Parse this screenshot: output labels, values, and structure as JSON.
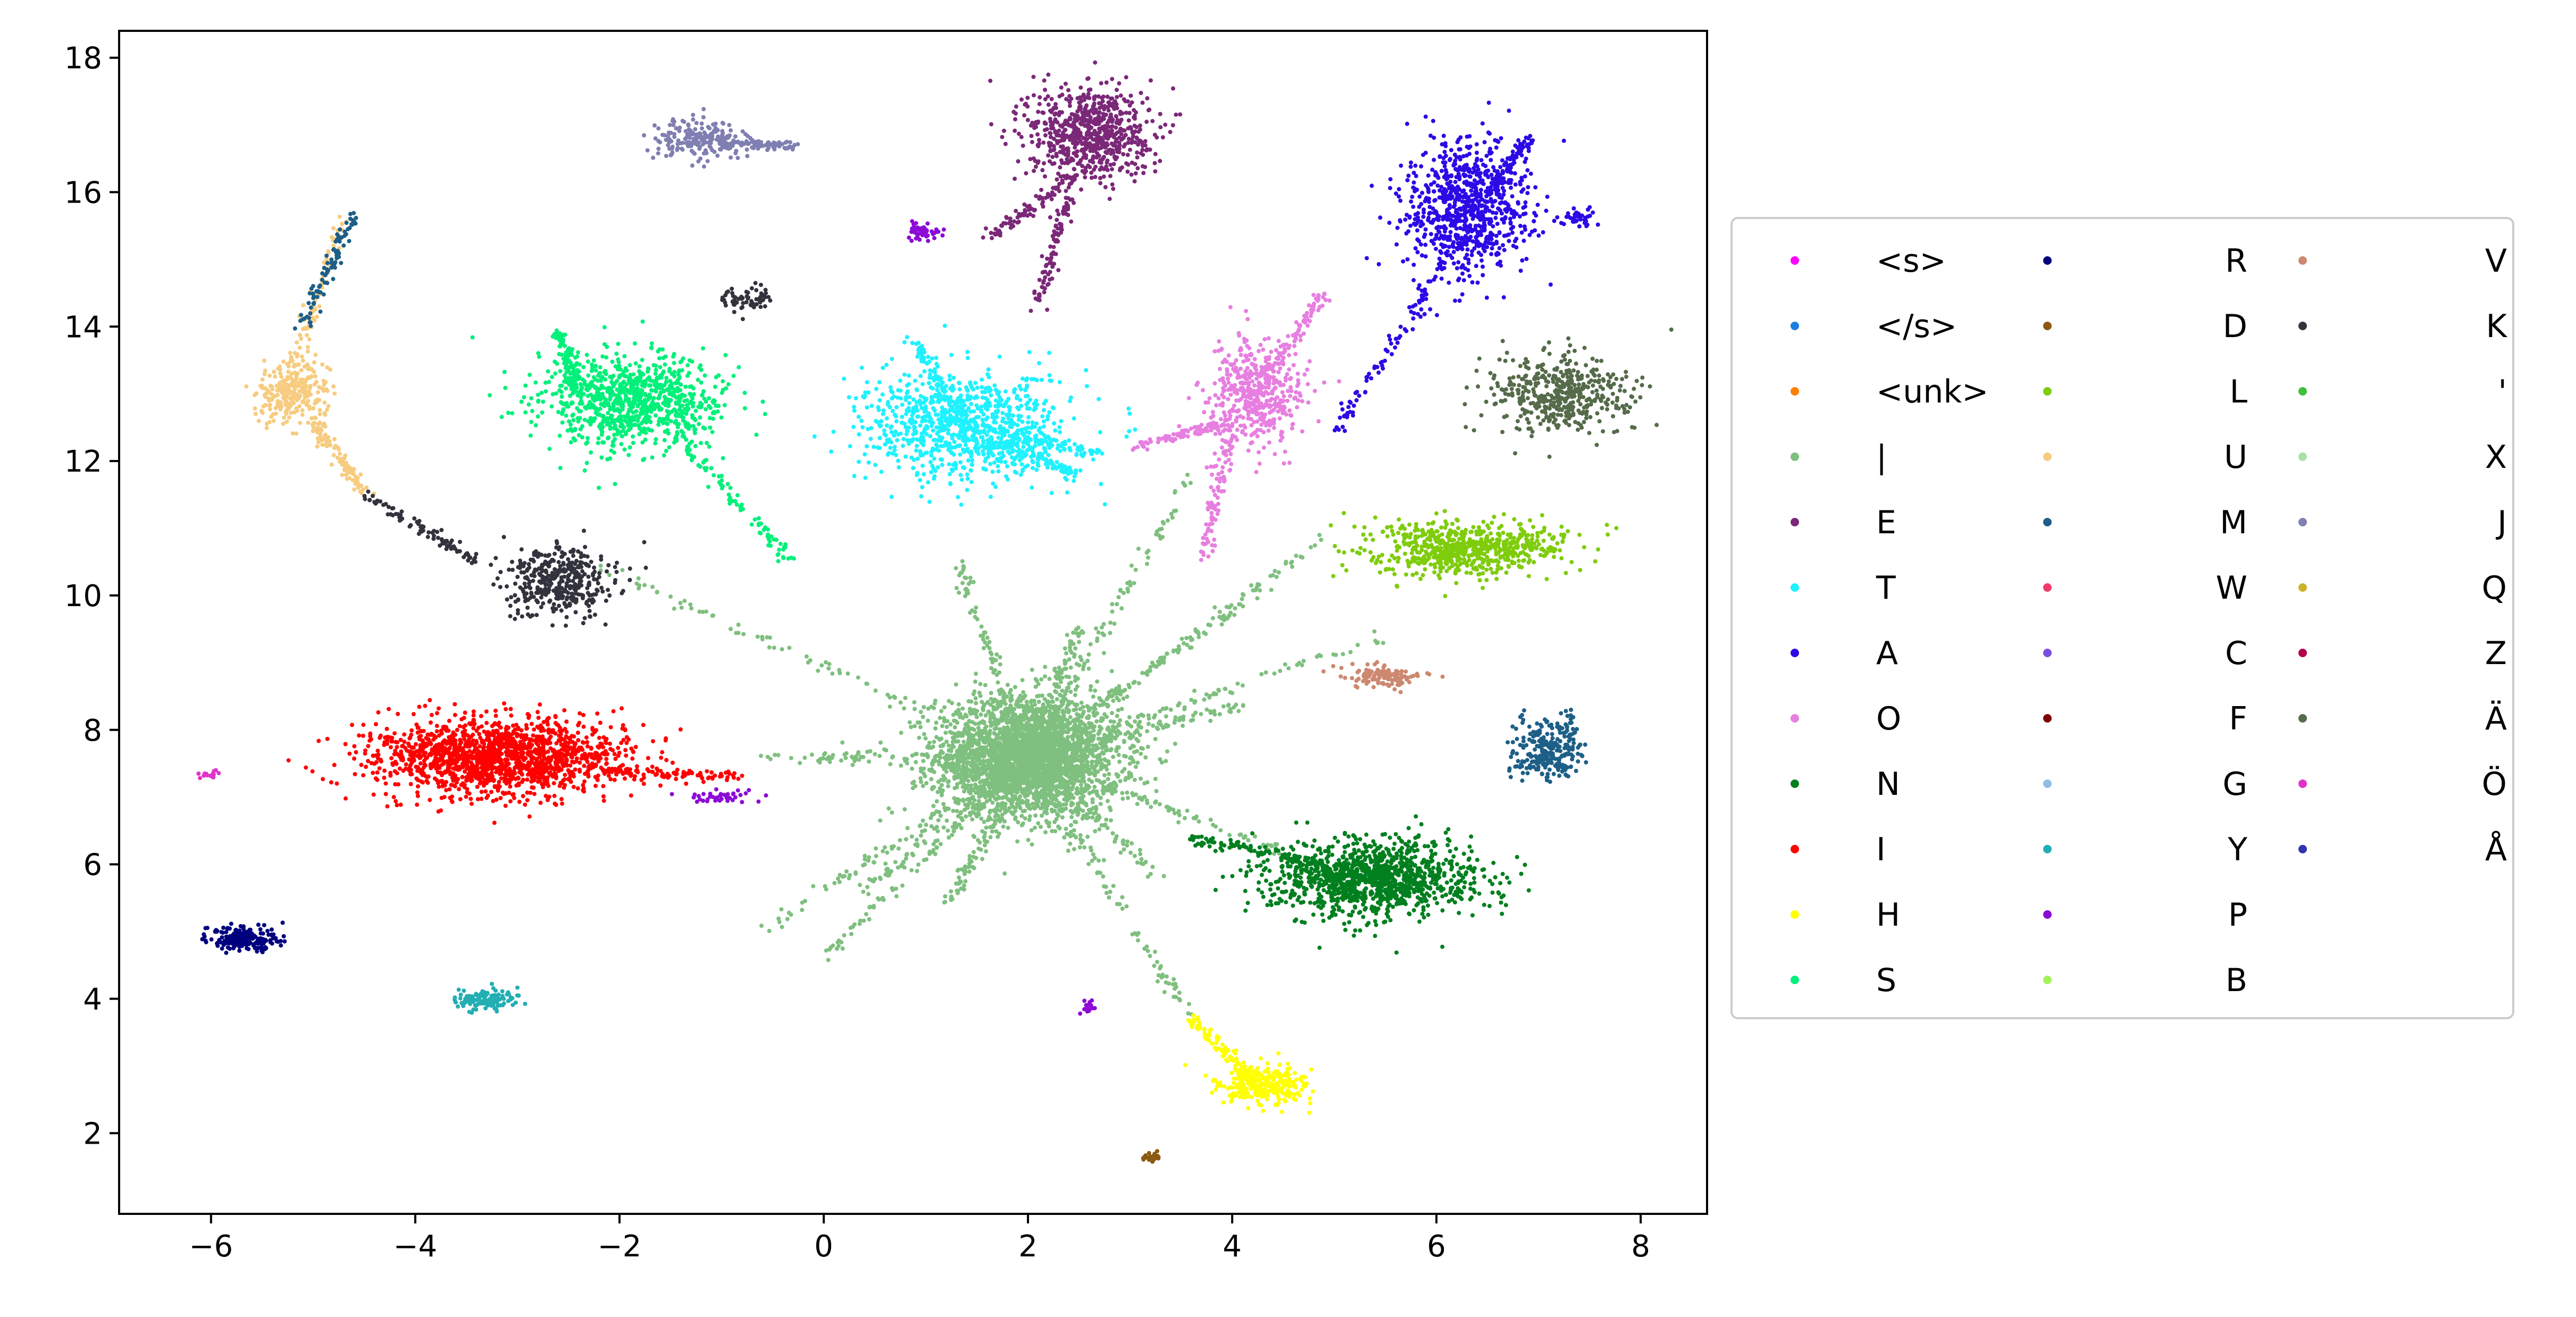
{
  "chart_data": {
    "type": "scatter",
    "title": "",
    "xlabel": "",
    "ylabel": "",
    "xlim": [
      -6.9,
      8.65
    ],
    "ylim": [
      0.8,
      18.4
    ],
    "x_ticks": [
      -6,
      -4,
      -2,
      0,
      2,
      4,
      6,
      8
    ],
    "y_ticks": [
      2,
      4,
      6,
      8,
      10,
      12,
      14,
      16,
      18
    ],
    "x_tick_labels": [
      "−6",
      "−4",
      "−2",
      "0",
      "2",
      "4",
      "6",
      "8"
    ],
    "y_tick_labels": [
      "2",
      "4",
      "6",
      "8",
      "10",
      "12",
      "14",
      "16",
      "18"
    ],
    "grid": false,
    "legend_placement": "right-outside",
    "legend_columns": 3,
    "series": [
      {
        "name": "<s>",
        "color": "#ff00ff",
        "clusters": []
      },
      {
        "name": "</s>",
        "color": "#1a7fe0",
        "clusters": []
      },
      {
        "name": "<unk>",
        "color": "#ff8000",
        "clusters": []
      },
      {
        "name": "|",
        "color": "#7fbf7f",
        "clusters": [
          {
            "cx": 2.0,
            "cy": 7.6,
            "sx": 0.45,
            "sy": 0.45,
            "n": 3000
          }
        ],
        "rays": [
          {
            "from": [
              2.0,
              7.6
            ],
            "to": [
              -2.3,
              10.5
            ]
          },
          {
            "from": [
              2.0,
              7.6
            ],
            "to": [
              -0.6,
              7.6
            ]
          },
          {
            "from": [
              2.0,
              7.6
            ],
            "to": [
              -0.6,
              5.0
            ]
          },
          {
            "from": [
              2.0,
              7.6
            ],
            "to": [
              1.3,
              10.5
            ]
          },
          {
            "from": [
              2.0,
              7.6
            ],
            "to": [
              0.0,
              4.6
            ]
          },
          {
            "from": [
              2.0,
              7.6
            ],
            "to": [
              3.6,
              11.8
            ]
          },
          {
            "from": [
              2.0,
              7.6
            ],
            "to": [
              4.4,
              10.2
            ]
          },
          {
            "from": [
              2.0,
              7.6
            ],
            "to": [
              5.0,
              11.0
            ]
          },
          {
            "from": [
              2.0,
              7.6
            ],
            "to": [
              5.5,
              9.4
            ]
          },
          {
            "from": [
              2.0,
              7.6
            ],
            "to": [
              4.2,
              8.4
            ]
          },
          {
            "from": [
              2.0,
              7.6
            ],
            "to": [
              3.6,
              3.7
            ]
          },
          {
            "from": [
              2.0,
              7.6
            ],
            "to": [
              4.5,
              6.2
            ]
          },
          {
            "from": [
              2.0,
              7.6
            ],
            "to": [
              3.3,
              5.8
            ]
          },
          {
            "from": [
              2.0,
              7.6
            ],
            "to": [
              0.4,
              5.6
            ]
          },
          {
            "from": [
              2.0,
              7.6
            ],
            "to": [
              2.5,
              9.5
            ]
          },
          {
            "from": [
              2.0,
              7.6
            ],
            "to": [
              1.2,
              5.4
            ]
          }
        ]
      },
      {
        "name": "E",
        "color": "#7b2878",
        "clusters": [
          {
            "cx": 2.6,
            "cy": 16.9,
            "sx": 0.3,
            "sy": 0.35,
            "n": 700
          }
        ],
        "rays": [
          {
            "from": [
              2.5,
              16.3
            ],
            "to": [
              1.6,
              15.3
            ]
          },
          {
            "from": [
              2.4,
              16.0
            ],
            "to": [
              2.1,
              14.3
            ]
          }
        ]
      },
      {
        "name": "T",
        "color": "#1ff1ff",
        "clusters": [
          {
            "cx": 1.4,
            "cy": 12.5,
            "sx": 0.5,
            "sy": 0.4,
            "n": 900
          }
        ],
        "rays": [
          {
            "from": [
              1.4,
              12.5
            ],
            "to": [
              0.9,
              13.8
            ]
          },
          {
            "from": [
              1.6,
              12.3
            ],
            "to": [
              2.5,
              11.8
            ]
          },
          {
            "from": [
              1.5,
              12.5
            ],
            "to": [
              2.7,
              12.1
            ]
          }
        ]
      },
      {
        "name": "A",
        "color": "#2b0ae6",
        "clusters": [
          {
            "cx": 6.3,
            "cy": 15.8,
            "sx": 0.3,
            "sy": 0.5,
            "n": 800
          },
          {
            "cx": 7.4,
            "cy": 15.6,
            "sx": 0.1,
            "sy": 0.08,
            "n": 40
          }
        ],
        "rays": [
          {
            "from": [
              6.1,
              15.0
            ],
            "to": [
              5.0,
              12.4
            ]
          },
          {
            "from": [
              6.5,
              16.0
            ],
            "to": [
              6.9,
              16.8
            ]
          }
        ]
      },
      {
        "name": "O",
        "color": "#e77fe0",
        "clusters": [
          {
            "cx": 4.2,
            "cy": 13.0,
            "sx": 0.22,
            "sy": 0.4,
            "n": 450
          }
        ],
        "rays": [
          {
            "from": [
              4.3,
              13.2
            ],
            "to": [
              4.9,
              14.5
            ]
          },
          {
            "from": [
              4.0,
              12.5
            ],
            "to": [
              3.7,
              10.5
            ]
          },
          {
            "from": [
              4.0,
              12.6
            ],
            "to": [
              3.0,
              12.2
            ]
          }
        ]
      },
      {
        "name": "N",
        "color": "#007f1f",
        "clusters": [
          {
            "cx": 5.4,
            "cy": 5.8,
            "sx": 0.5,
            "sy": 0.28,
            "n": 1200
          }
        ],
        "rays": [
          {
            "from": [
              4.9,
              6.0
            ],
            "to": [
              3.6,
              6.4
            ]
          }
        ]
      },
      {
        "name": "I",
        "color": "#ff0000",
        "clusters": [
          {
            "cx": -3.2,
            "cy": 7.6,
            "sx": 0.6,
            "sy": 0.28,
            "n": 1600
          }
        ],
        "rays": [
          {
            "from": [
              -2.2,
              7.4
            ],
            "to": [
              -0.8,
              7.3
            ]
          }
        ]
      },
      {
        "name": "H",
        "color": "#ffff00",
        "clusters": [
          {
            "cx": 4.3,
            "cy": 2.7,
            "sx": 0.22,
            "sy": 0.15,
            "n": 300
          }
        ],
        "rays": [
          {
            "from": [
              4.2,
              2.8
            ],
            "to": [
              3.6,
              3.7
            ]
          }
        ]
      },
      {
        "name": "S",
        "color": "#00f07a",
        "clusters": [
          {
            "cx": -1.9,
            "cy": 12.9,
            "sx": 0.45,
            "sy": 0.35,
            "n": 900
          }
        ],
        "rays": [
          {
            "from": [
              -1.5,
              12.5
            ],
            "to": [
              -0.3,
              10.5
            ]
          },
          {
            "from": [
              -2.4,
              13.0
            ],
            "to": [
              -2.6,
              13.9
            ]
          }
        ]
      },
      {
        "name": "R",
        "color": "#00007f",
        "clusters": [
          {
            "cx": -5.7,
            "cy": 4.9,
            "sx": 0.18,
            "sy": 0.09,
            "n": 200
          }
        ]
      },
      {
        "name": "D",
        "color": "#8a5a10",
        "clusters": [
          {
            "cx": 3.2,
            "cy": 1.65,
            "sx": 0.05,
            "sy": 0.03,
            "n": 25
          }
        ]
      },
      {
        "name": "L",
        "color": "#7fcc0c",
        "clusters": [
          {
            "cx": 6.3,
            "cy": 10.7,
            "sx": 0.45,
            "sy": 0.2,
            "n": 700
          }
        ]
      },
      {
        "name": "U",
        "color": "#f7cc80",
        "clusters": [
          {
            "cx": -5.2,
            "cy": 13.0,
            "sx": 0.18,
            "sy": 0.22,
            "n": 260
          }
        ],
        "rays": [
          {
            "from": [
              -5.2,
              13.4
            ],
            "to": [
              -4.7,
              15.6
            ]
          },
          {
            "from": [
              -5.0,
              12.6
            ],
            "to": [
              -4.5,
              11.5
            ]
          }
        ]
      },
      {
        "name": "M",
        "color": "#1d5f87",
        "clusters": [
          {
            "cx": 7.1,
            "cy": 7.7,
            "sx": 0.18,
            "sy": 0.25,
            "n": 260
          }
        ],
        "rays": [
          {
            "from": [
              -5.1,
              14.0
            ],
            "to": [
              -4.6,
              15.7
            ]
          }
        ]
      },
      {
        "name": "W",
        "color": "#ef3a6c",
        "clusters": []
      },
      {
        "name": "C",
        "color": "#7a4fe0",
        "clusters": []
      },
      {
        "name": "F",
        "color": "#7f0000",
        "clusters": []
      },
      {
        "name": "G",
        "color": "#8fbde8",
        "clusters": []
      },
      {
        "name": "Y",
        "color": "#22aeb3",
        "clusters": [
          {
            "cx": -3.3,
            "cy": 4.0,
            "sx": 0.15,
            "sy": 0.08,
            "n": 120
          }
        ]
      },
      {
        "name": "P",
        "color": "#8c0ad6",
        "clusters": [
          {
            "cx": 1.0,
            "cy": 15.4,
            "sx": 0.08,
            "sy": 0.06,
            "n": 50
          },
          {
            "cx": -1.0,
            "cy": 7.0,
            "sx": 0.2,
            "sy": 0.05,
            "n": 40
          },
          {
            "cx": 2.6,
            "cy": 3.9,
            "sx": 0.05,
            "sy": 0.05,
            "n": 15
          }
        ]
      },
      {
        "name": "B",
        "color": "#a6f05a",
        "clusters": []
      },
      {
        "name": "V",
        "color": "#cc8870",
        "clusters": [
          {
            "cx": 5.5,
            "cy": 8.8,
            "sx": 0.2,
            "sy": 0.08,
            "n": 120
          }
        ]
      },
      {
        "name": "K",
        "color": "#33333d",
        "clusters": [
          {
            "cx": -2.6,
            "cy": 10.2,
            "sx": 0.25,
            "sy": 0.25,
            "n": 400
          },
          {
            "cx": -0.8,
            "cy": 14.4,
            "sx": 0.15,
            "sy": 0.1,
            "n": 60
          }
        ],
        "rays": [
          {
            "from": [
              -3.4,
              10.5
            ],
            "to": [
              -4.5,
              11.5
            ]
          }
        ]
      },
      {
        "name": "'",
        "color": "#3fbf3f",
        "clusters": []
      },
      {
        "name": "X",
        "color": "#a8e0a8",
        "clusters": []
      },
      {
        "name": "J",
        "color": "#7f7fb2",
        "clusters": [
          {
            "cx": -1.2,
            "cy": 16.8,
            "sx": 0.22,
            "sy": 0.15,
            "n": 200
          }
        ],
        "rays": [
          {
            "from": [
              -1.0,
              16.7
            ],
            "to": [
              -0.3,
              16.7
            ]
          }
        ]
      },
      {
        "name": "Q",
        "color": "#ccb22a",
        "clusters": []
      },
      {
        "name": "Z",
        "color": "#b2004c",
        "clusters": []
      },
      {
        "name": "Ä",
        "color": "#556b4a",
        "clusters": [
          {
            "cx": 7.2,
            "cy": 13.0,
            "sx": 0.35,
            "sy": 0.3,
            "n": 450
          }
        ]
      },
      {
        "name": "Ö",
        "color": "#e034c8",
        "clusters": [
          {
            "cx": -6.0,
            "cy": 7.35,
            "sx": 0.04,
            "sy": 0.03,
            "n": 15
          }
        ]
      },
      {
        "name": "Å",
        "color": "#3333b2",
        "clusters": []
      }
    ]
  }
}
